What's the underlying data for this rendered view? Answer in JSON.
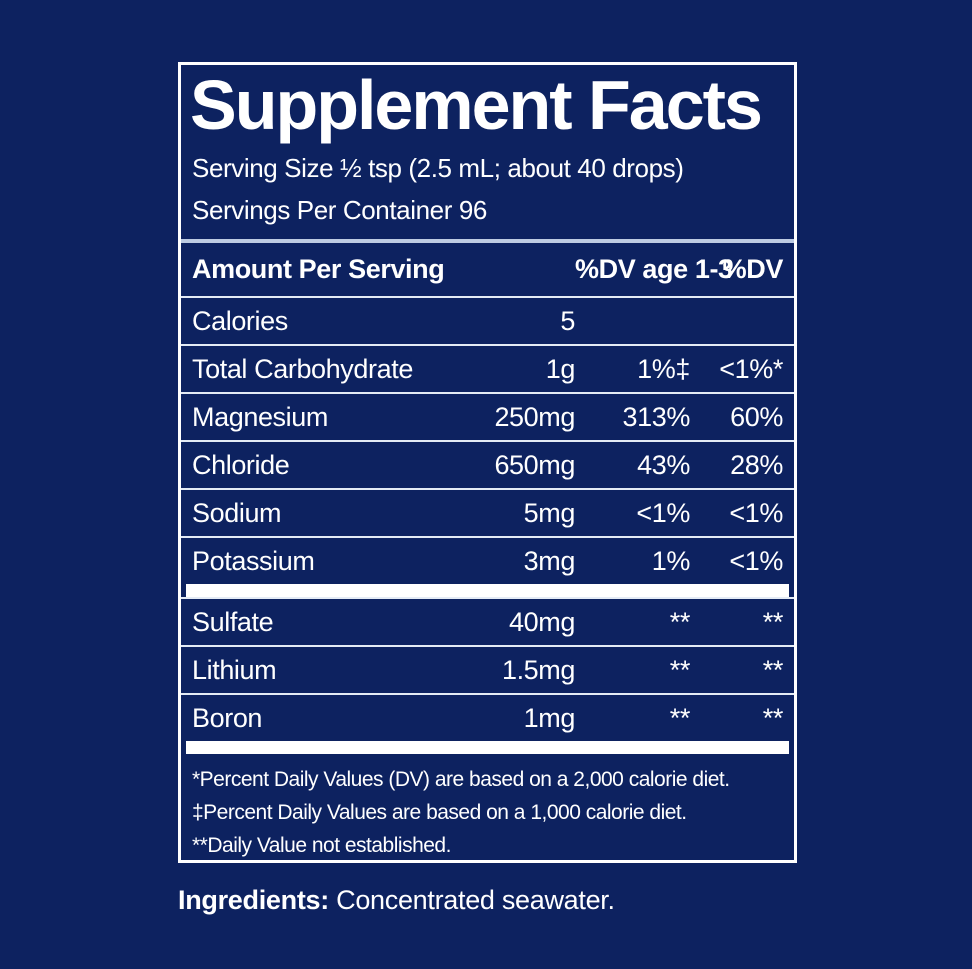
{
  "colors": {
    "background": "#0d2260",
    "border_and_bars": "#ffffff",
    "thin_rule": "#e4ebf5",
    "header_rule": "#bdcbe2",
    "text": "#ffffff"
  },
  "panel": {
    "title": "Supplement Facts",
    "serving_size": "Serving Size ½ tsp (2.5 mL; about 40 drops)",
    "servings_per_container": "Servings Per Container 96",
    "header": {
      "amount_per_serving": "Amount Per Serving",
      "dv_age_1_3": "%DV age 1-3",
      "dv": "%DV"
    },
    "rows": [
      {
        "name": "Calories",
        "amount": "5",
        "dv1": "",
        "dv2": "",
        "bar_after": false
      },
      {
        "name": "Total Carbohydrate",
        "amount": "1g",
        "dv1": "1%‡",
        "dv2": "<1%*",
        "bar_after": false
      },
      {
        "name": "Magnesium",
        "amount": "250mg",
        "dv1": "313%",
        "dv2": "60%",
        "bar_after": false
      },
      {
        "name": "Chloride",
        "amount": "650mg",
        "dv1": "43%",
        "dv2": "28%",
        "bar_after": false
      },
      {
        "name": "Sodium",
        "amount": "5mg",
        "dv1": "<1%",
        "dv2": "<1%",
        "bar_after": false
      },
      {
        "name": "Potassium",
        "amount": "3mg",
        "dv1": "1%",
        "dv2": "<1%",
        "bar_after": true
      },
      {
        "name": "Sulfate",
        "amount": "40mg",
        "dv1": "**",
        "dv2": "**",
        "bar_after": false
      },
      {
        "name": "Lithium",
        "amount": "1.5mg",
        "dv1": "**",
        "dv2": "**",
        "bar_after": false
      },
      {
        "name": "Boron",
        "amount": "1mg",
        "dv1": "**",
        "dv2": "**",
        "bar_after": true
      }
    ],
    "footnotes": [
      "*Percent Daily Values (DV) are based on a 2,000 calorie diet.",
      "‡Percent Daily Values are based on a 1,000 calorie diet.",
      "**Daily Value not established."
    ]
  },
  "ingredients": {
    "label": "Ingredients:",
    "text": " Concentrated seawater."
  }
}
